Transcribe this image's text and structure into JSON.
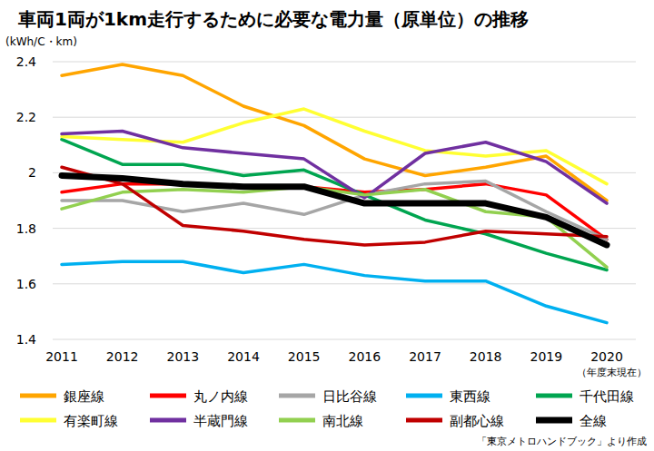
{
  "chart_data": {
    "type": "line",
    "title": "車両1両が1km走行するために必要な電力量（原単位）の推移",
    "y_label": "(kWh/C・km)",
    "x_label": "（年度末現在）",
    "annotations": [
      "「東京メトロハンドブック」より作成"
    ],
    "categories": [
      "2011",
      "2012",
      "2013",
      "2014",
      "2015",
      "2016",
      "2017",
      "2018",
      "2019",
      "2020"
    ],
    "series": [
      {
        "name": "銀座線",
        "color": "#FFA500",
        "values": [
          2.35,
          2.39,
          2.35,
          2.24,
          2.17,
          2.05,
          1.99,
          2.02,
          2.06,
          1.9
        ]
      },
      {
        "name": "丸ノ内線",
        "color": "#FF0000",
        "values": [
          1.93,
          1.96,
          1.96,
          1.95,
          1.95,
          1.93,
          1.94,
          1.96,
          1.92,
          1.76
        ]
      },
      {
        "name": "日比谷線",
        "color": "#A6A6A6",
        "values": [
          1.9,
          1.9,
          1.86,
          1.89,
          1.85,
          1.92,
          1.96,
          1.97,
          1.86,
          1.76
        ]
      },
      {
        "name": "東西線",
        "color": "#00B0F0",
        "values": [
          1.67,
          1.68,
          1.68,
          1.64,
          1.67,
          1.63,
          1.61,
          1.61,
          1.52,
          1.46
        ]
      },
      {
        "name": "千代田線",
        "color": "#00A550",
        "values": [
          2.12,
          2.03,
          2.03,
          1.99,
          2.01,
          1.92,
          1.83,
          1.78,
          1.71,
          1.65
        ]
      },
      {
        "name": "有楽町線",
        "color": "#FFFF33",
        "values": [
          2.13,
          2.12,
          2.11,
          2.18,
          2.23,
          2.15,
          2.08,
          2.06,
          2.08,
          1.96
        ]
      },
      {
        "name": "半蔵門線",
        "color": "#7030A0",
        "values": [
          2.14,
          2.15,
          2.09,
          2.07,
          2.05,
          1.91,
          2.07,
          2.11,
          2.04,
          1.89
        ]
      },
      {
        "name": "南北線",
        "color": "#92D050",
        "values": [
          1.87,
          1.93,
          1.94,
          1.93,
          1.95,
          1.92,
          1.94,
          1.86,
          1.84,
          1.66
        ]
      },
      {
        "name": "副都心線",
        "color": "#C00000",
        "values": [
          2.02,
          1.96,
          1.81,
          1.79,
          1.76,
          1.74,
          1.75,
          1.79,
          1.78,
          1.77
        ]
      },
      {
        "name": "全線",
        "color": "#000000",
        "line_style": "thick",
        "values": [
          1.99,
          1.98,
          1.96,
          1.95,
          1.95,
          1.89,
          1.89,
          1.89,
          1.84,
          1.74
        ]
      }
    ],
    "ylim": [
      1.4,
      2.4
    ],
    "yticks": [
      1.4,
      1.6,
      1.8,
      2,
      2.2,
      2.4
    ],
    "grid": true,
    "legend": "bottom"
  }
}
